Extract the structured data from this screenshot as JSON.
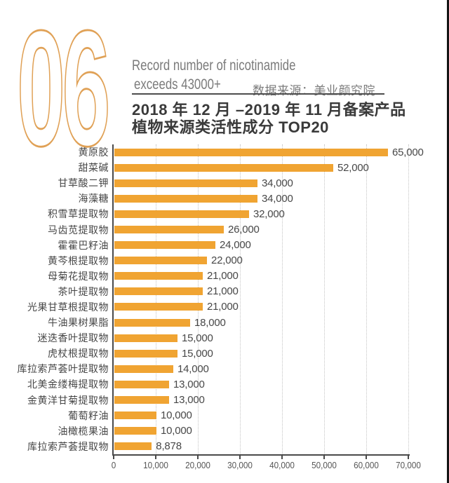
{
  "header": {
    "section_number": "06",
    "title_en_line1": "Record number of nicotinamide",
    "title_en_line2": "exceeds 43000+",
    "data_source": "数据来源：美业颜究院",
    "title_zh_line1": "2018 年 12 月 –2019 年 11 月备案产品",
    "title_zh_line2": "植物来源类活性成分 TOP20"
  },
  "colors": {
    "bar": "#F0A432",
    "number_outline": "#E0A156",
    "gray_text": "#7B7B7B",
    "dark_text": "#3A3A3A",
    "label_text": "#474747",
    "axis": "#4A4A4A",
    "gridline": "#C4C4C4",
    "edge_line": "#141414"
  },
  "chart_data": {
    "type": "bar",
    "orientation": "horizontal",
    "title": "2018 年 12 月 –2019 年 11 月备案产品 植物来源类活性成分 TOP20",
    "categories": [
      "黄原胶",
      "甜菜碱",
      "甘草酸二钾",
      "海藻糖",
      "积雪草提取物",
      "马齿苋提取物",
      "霍霍巴籽油",
      "黄芩根提取物",
      "母菊花提取物",
      "茶叶提取物",
      "光果甘草根提取物",
      "牛油果树果脂",
      "迷迭香叶提取物",
      "虎杖根提取物",
      "库拉索芦荟叶提取物",
      "北美金缕梅提取物",
      "金黄洋甘菊提取物",
      "葡萄籽油",
      "油橄榄果油",
      "库拉索芦荟提取物"
    ],
    "values": [
      65000,
      52000,
      34000,
      34000,
      32000,
      26000,
      24000,
      22000,
      21000,
      21000,
      21000,
      18000,
      15000,
      15000,
      14000,
      13000,
      13000,
      10000,
      10000,
      8878
    ],
    "value_labels": [
      "65,000",
      "52,000",
      "34,000",
      "34,000",
      "32,000",
      "26,000",
      "24,000",
      "22,000",
      "21,000",
      "21,000",
      "21,000",
      "18,000",
      "15,000",
      "15,000",
      "14,000",
      "13,000",
      "13,000",
      "10,000",
      "10,000",
      "8,878"
    ],
    "x_ticks": [
      "0",
      "10,000",
      "20,000",
      "30,000",
      "40,000",
      "50,000",
      "60,000",
      "70,000"
    ],
    "xlim": [
      0,
      70000
    ],
    "grid": "dotted-vertical",
    "legend": "none"
  }
}
